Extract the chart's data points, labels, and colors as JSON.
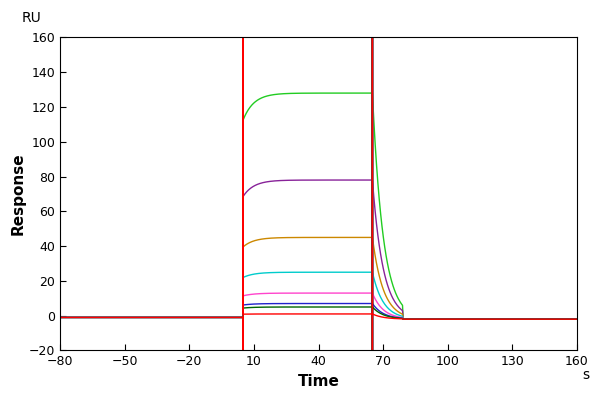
{
  "xlim": [
    -80,
    160
  ],
  "ylim": [
    -20,
    160
  ],
  "xticks": [
    -80,
    -50,
    -20,
    10,
    40,
    70,
    100,
    130,
    160
  ],
  "yticks": [
    -20,
    0,
    20,
    40,
    60,
    80,
    100,
    120,
    140,
    160
  ],
  "xlabel": "Time",
  "xlabel_unit": "s",
  "ylabel": "Response",
  "ylabel_top": "RU",
  "x_injection_start": 5,
  "x_injection_end": 65,
  "baseline_start": -80,
  "dissociation_end": 160,
  "curves": [
    {
      "color": "#22cc22",
      "plateau": 128,
      "rise_tau": 3.0,
      "post_val": -2.0
    },
    {
      "color": "#882299",
      "plateau": 78,
      "rise_tau": 3.0,
      "post_val": -2.0
    },
    {
      "color": "#cc8800",
      "plateau": 45,
      "rise_tau": 3.0,
      "post_val": -2.0
    },
    {
      "color": "#00cccc",
      "plateau": 25,
      "rise_tau": 3.0,
      "post_val": -2.0
    },
    {
      "color": "#ff44cc",
      "plateau": 13,
      "rise_tau": 3.0,
      "post_val": -2.0
    },
    {
      "color": "#2222cc",
      "plateau": 7,
      "rise_tau": 3.0,
      "post_val": -2.0
    },
    {
      "color": "#006600",
      "plateau": 5,
      "rise_tau": 3.0,
      "post_val": -2.0
    },
    {
      "color": "#ff0000",
      "plateau": 1,
      "rise_tau": 3.0,
      "post_val": -2.0
    }
  ],
  "figsize": [
    6.0,
    4.0
  ],
  "dpi": 100
}
